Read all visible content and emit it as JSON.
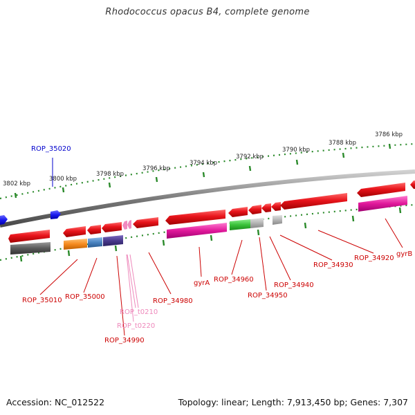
{
  "header": {
    "title": "Rhodococcus opacus B4, complete genome"
  },
  "footer": {
    "accession": "Accession: NC_012522",
    "summary": "Topology: linear; Length: 7,913,450 bp; Genes: 7,307"
  },
  "scale": {
    "ticks": [
      "3802 kbp",
      "3800 kbp",
      "3798 kbp",
      "3796 kbp",
      "3794 kbp",
      "3792 kbp",
      "3790 kbp",
      "3788 kbp",
      "3786 kbp"
    ]
  },
  "colors": {
    "cds": "#e8141b",
    "gene_gray": "#5a5a5a",
    "gene_magenta": "#e0189a",
    "gene_orange": "#f58a1f",
    "gene_steel": "#4a83c0",
    "gene_purple": "#4a3a8c",
    "gene_green": "#3ac23a",
    "gene_lightgray": "#b4b4b4",
    "trna_pink": "#f08ac0",
    "label_red": "#cc0000",
    "label_blue": "#0000cc",
    "label_pink": "#ee88bb",
    "ticks_green": "#2a8a2a"
  },
  "labels": [
    {
      "id": "ROP_35020",
      "text": "ROP_35020",
      "color": "blue"
    },
    {
      "id": "ROP_35010",
      "text": "ROP_35010",
      "color": "red"
    },
    {
      "id": "ROP_35000",
      "text": "ROP_35000",
      "color": "red"
    },
    {
      "id": "ROP_t0210",
      "text": "ROP_t0210",
      "color": "pink"
    },
    {
      "id": "ROP_t0220",
      "text": "ROP_t0220",
      "color": "pink"
    },
    {
      "id": "ROP_34990",
      "text": "ROP_34990",
      "color": "red"
    },
    {
      "id": "ROP_34980",
      "text": "ROP_34980",
      "color": "red"
    },
    {
      "id": "gyrA",
      "text": "gyrA",
      "color": "red"
    },
    {
      "id": "ROP_34960",
      "text": "ROP_34960",
      "color": "red"
    },
    {
      "id": "ROP_34950",
      "text": "ROP_34950",
      "color": "red"
    },
    {
      "id": "ROP_34940",
      "text": "ROP_34940",
      "color": "red"
    },
    {
      "id": "ROP_34930",
      "text": "ROP_34930",
      "color": "red"
    },
    {
      "id": "ROP_34920",
      "text": "ROP_34920",
      "color": "red"
    },
    {
      "id": "gyrB",
      "text": "gyrB",
      "color": "red"
    }
  ]
}
